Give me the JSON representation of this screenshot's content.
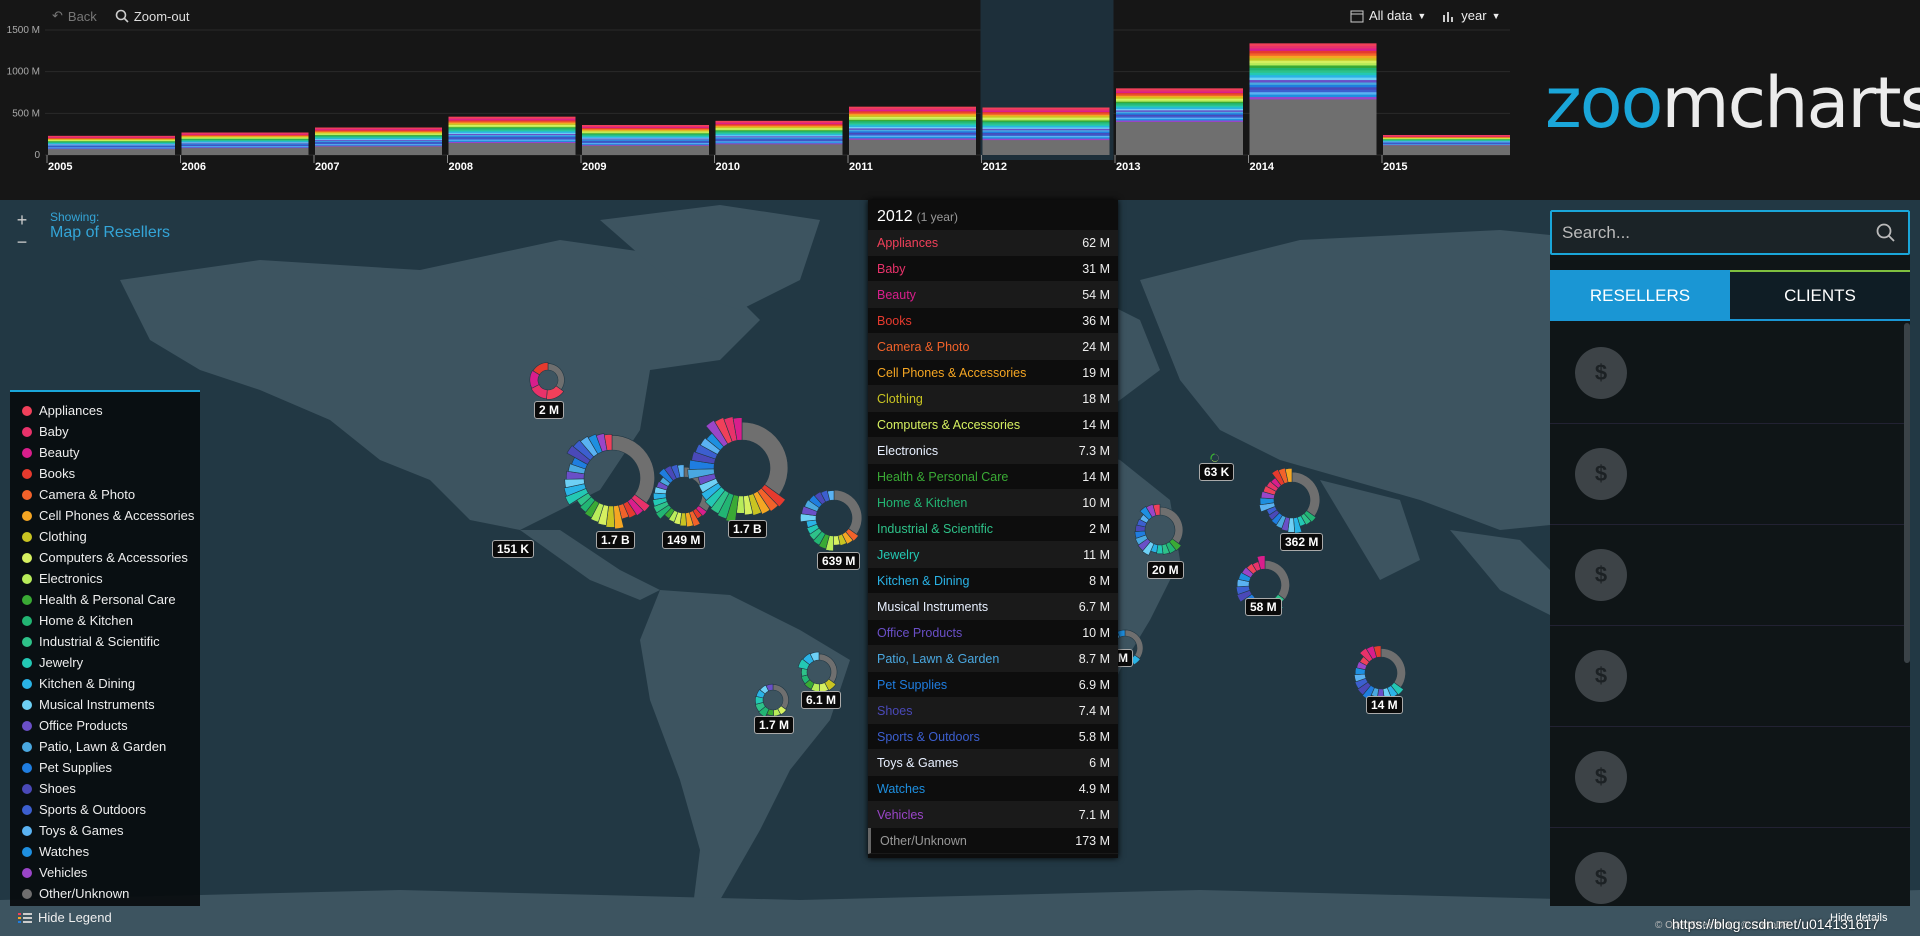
{
  "timeline": {
    "back_label": "Back",
    "zoomout_label": "Zoom-out",
    "alldata_label": "All data",
    "year_label": "year",
    "y_ticks": [
      "0",
      "500 M",
      "1000 M",
      "1500 M"
    ],
    "years": [
      "2005",
      "2006",
      "2007",
      "2008",
      "2009",
      "2010",
      "2011",
      "2012",
      "2013",
      "2014",
      "2015"
    ],
    "totals_m": [
      230,
      270,
      330,
      460,
      360,
      410,
      580,
      570,
      800,
      1340,
      240
    ],
    "selected_year": "2012"
  },
  "logo": {
    "z": "zo",
    "o": "o",
    "rest": "mcharts"
  },
  "map": {
    "showing_label": "Showing:",
    "showing_value": "Map of Resellers",
    "zoom_in": "+",
    "zoom_out": "−",
    "markers": [
      {
        "label": "2 M"
      },
      {
        "label": "1.7 B"
      },
      {
        "label": "149 M"
      },
      {
        "label": "1.7 B"
      },
      {
        "label": "639 M"
      },
      {
        "label": "151 K"
      },
      {
        "label": "6.1 M"
      },
      {
        "label": "1.7 M"
      },
      {
        "label": "63 K"
      },
      {
        "label": "20 M"
      },
      {
        "label": "362 M"
      },
      {
        "label": "58 M"
      },
      {
        "label": "14 M"
      },
      {
        "label": "M"
      }
    ]
  },
  "categories": [
    {
      "name": "Appliances",
      "color": "#f0405a",
      "value": "62 M"
    },
    {
      "name": "Baby",
      "color": "#e8326a",
      "value": "31 M"
    },
    {
      "name": "Beauty",
      "color": "#d91e8c",
      "value": "54 M"
    },
    {
      "name": "Books",
      "color": "#e63a2e",
      "value": "36 M"
    },
    {
      "name": "Camera & Photo",
      "color": "#f2622a",
      "value": "24 M"
    },
    {
      "name": "Cell Phones & Accessories",
      "color": "#f5a623",
      "value": "19 M"
    },
    {
      "name": "Clothing",
      "color": "#c9c422",
      "value": "18 M"
    },
    {
      "name": "Computers & Accessories",
      "color": "#d6f060",
      "value": "14 M"
    },
    {
      "name": "Electronics",
      "color": "#b8ec5a",
      "value": "7.3 M"
    },
    {
      "name": "Health & Personal Care",
      "color": "#3aaa35",
      "value": "14 M"
    },
    {
      "name": "Home & Kitchen",
      "color": "#22b573",
      "value": "10 M"
    },
    {
      "name": "Industrial & Scientific",
      "color": "#2ec289",
      "value": "2 M"
    },
    {
      "name": "Jewelry",
      "color": "#23c8b4",
      "value": "11 M"
    },
    {
      "name": "Kitchen & Dining",
      "color": "#2ab3e6",
      "value": "8 M"
    },
    {
      "name": "Musical Instruments",
      "color": "#6ed0f5",
      "value": "6.7 M"
    },
    {
      "name": "Office Products",
      "color": "#6a4fc7",
      "value": "10 M"
    },
    {
      "name": "Patio, Lawn & Garden",
      "color": "#4aa8e0",
      "value": "8.7 M"
    },
    {
      "name": "Pet Supplies",
      "color": "#1f7de0",
      "value": "6.9 M"
    },
    {
      "name": "Shoes",
      "color": "#4a49b8",
      "value": "7.4 M"
    },
    {
      "name": "Sports & Outdoors",
      "color": "#3c5fcf",
      "value": "5.8 M"
    },
    {
      "name": "Toys & Games",
      "color": "#5ab2f2",
      "value": "6 M"
    },
    {
      "name": "Watches",
      "color": "#1e8fe0",
      "value": "4.9 M"
    },
    {
      "name": "Vehicles",
      "color": "#9a45c8",
      "value": "7.1 M"
    },
    {
      "name": "Other/Unknown",
      "color": "#6f6f6f",
      "value": "173 M"
    }
  ],
  "legend": {
    "hide_label": "Hide Legend"
  },
  "details": {
    "year": "2012",
    "sub": "(1 year)"
  },
  "right": {
    "search_placeholder": "Search...",
    "tab_resellers": "RESELLERS",
    "tab_clients": "CLIENTS",
    "items_count": 6
  },
  "footer": {
    "attribution": "© OpenStreetMap, © CartoDB",
    "hide_details": "Hide details",
    "watermark": "https://blog.csdn.net/u014131617"
  }
}
